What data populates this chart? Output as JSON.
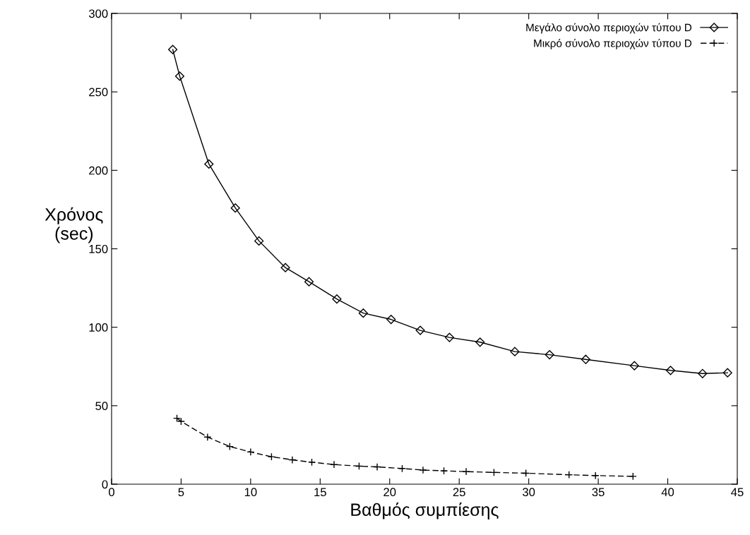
{
  "chart_data": {
    "type": "line",
    "xlabel": "Βαθμός συμπίεσης",
    "ylabel": "Χρόνος\n(sec)",
    "xlim": [
      0,
      45
    ],
    "ylim": [
      0,
      300
    ],
    "xticks": [
      0,
      5,
      10,
      15,
      20,
      25,
      30,
      35,
      40,
      45
    ],
    "yticks": [
      0,
      50,
      100,
      150,
      200,
      250,
      300
    ],
    "grid": false,
    "legend": "top right",
    "series": [
      {
        "name": "Μεγάλο σύνολο περιοχών τύπου D",
        "color": "#000000",
        "marker": "diamond",
        "line_style": "solid",
        "x": [
          4.4,
          4.9,
          7.0,
          8.9,
          10.6,
          12.5,
          14.2,
          16.2,
          18.1,
          20.1,
          22.2,
          24.3,
          26.5,
          29.0,
          31.5,
          34.1,
          37.6,
          40.2,
          42.5,
          44.3
        ],
        "values": [
          277,
          260,
          204,
          176,
          155,
          138,
          129,
          118,
          109,
          105,
          98,
          93.5,
          90.5,
          84.5,
          82.5,
          79.5,
          75.5,
          72.5,
          70.5,
          71
        ]
      },
      {
        "name": "Μικρό σύνολο περιοχών τύπου D",
        "color": "#000000",
        "marker": "cross",
        "line_style": "dashed",
        "x": [
          4.7,
          5.0,
          6.9,
          8.5,
          10.0,
          11.5,
          13.0,
          14.4,
          16.0,
          17.8,
          19.1,
          20.9,
          22.4,
          23.9,
          25.5,
          27.5,
          29.8,
          32.9,
          34.8,
          37.5
        ],
        "values": [
          42,
          40,
          30,
          24,
          20.5,
          17.5,
          15.5,
          14,
          12.5,
          11.5,
          11,
          10,
          9,
          8.5,
          8,
          7.5,
          7,
          6,
          5.5,
          5
        ]
      }
    ]
  }
}
